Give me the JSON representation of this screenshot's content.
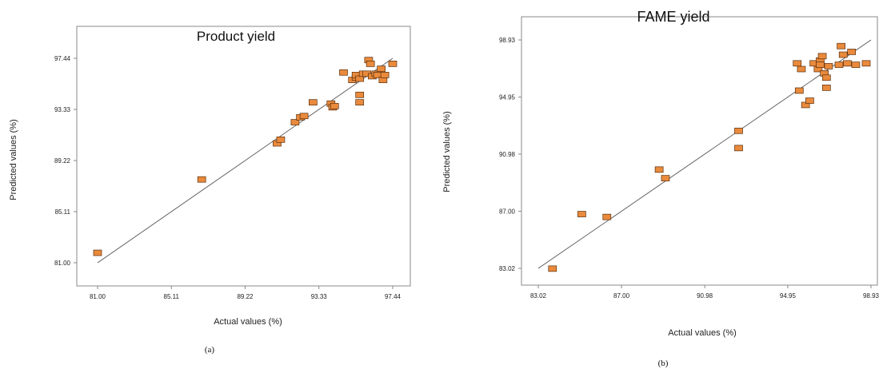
{
  "chart_data": [
    {
      "type": "scatter",
      "title": "Product yield",
      "xlabel": "Actual values (%)",
      "ylabel": "Predicted values (%)",
      "caption": "(a)",
      "xlim": [
        81.0,
        97.44
      ],
      "ylim": [
        81.0,
        97.44
      ],
      "xticks": [
        "81.00",
        "85.11",
        "89.22",
        "93.33",
        "97.44"
      ],
      "yticks": [
        "81.00",
        "85.11",
        "89.22",
        "93.33",
        "97.44"
      ],
      "grid": false,
      "fit_line": [
        [
          81.0,
          81.0
        ],
        [
          97.44,
          97.44
        ]
      ],
      "points": [
        {
          "x": 81.0,
          "y": 81.8
        },
        {
          "x": 86.8,
          "y": 87.7
        },
        {
          "x": 91.0,
          "y": 90.6
        },
        {
          "x": 91.2,
          "y": 90.9
        },
        {
          "x": 92.0,
          "y": 92.3
        },
        {
          "x": 92.3,
          "y": 92.7
        },
        {
          "x": 92.5,
          "y": 92.8
        },
        {
          "x": 93.0,
          "y": 93.9
        },
        {
          "x": 94.0,
          "y": 93.8
        },
        {
          "x": 94.1,
          "y": 93.5
        },
        {
          "x": 94.2,
          "y": 93.6
        },
        {
          "x": 94.7,
          "y": 96.3
        },
        {
          "x": 95.2,
          "y": 95.7
        },
        {
          "x": 95.4,
          "y": 95.9
        },
        {
          "x": 95.4,
          "y": 96.1
        },
        {
          "x": 95.6,
          "y": 95.8
        },
        {
          "x": 95.6,
          "y": 94.5
        },
        {
          "x": 95.6,
          "y": 93.9
        },
        {
          "x": 95.8,
          "y": 96.2
        },
        {
          "x": 96.0,
          "y": 96.2
        },
        {
          "x": 96.1,
          "y": 97.3
        },
        {
          "x": 96.2,
          "y": 97.0
        },
        {
          "x": 96.3,
          "y": 96.0
        },
        {
          "x": 96.5,
          "y": 96.2
        },
        {
          "x": 96.6,
          "y": 96.1
        },
        {
          "x": 96.8,
          "y": 96.6
        },
        {
          "x": 96.9,
          "y": 95.7
        },
        {
          "x": 97.0,
          "y": 96.1
        },
        {
          "x": 97.44,
          "y": 97.0
        }
      ]
    },
    {
      "type": "scatter",
      "title": "FAME yield",
      "xlabel": "Actual values (%)",
      "ylabel": "Predicted values (%)",
      "caption": "(b)",
      "xlim": [
        83.02,
        98.93
      ],
      "ylim": [
        83.02,
        98.93
      ],
      "xticks": [
        "83.02",
        "87.00",
        "90.98",
        "94.95",
        "98.93"
      ],
      "yticks": [
        "83.02",
        "87.00",
        "90.98",
        "94.95",
        "98.93"
      ],
      "grid": false,
      "fit_line": [
        [
          83.02,
          83.02
        ],
        [
          98.93,
          98.93
        ]
      ],
      "points": [
        {
          "x": 83.7,
          "y": 83.0
        },
        {
          "x": 85.1,
          "y": 86.8
        },
        {
          "x": 86.3,
          "y": 86.6
        },
        {
          "x": 88.8,
          "y": 89.9
        },
        {
          "x": 89.1,
          "y": 89.3
        },
        {
          "x": 92.6,
          "y": 92.6
        },
        {
          "x": 92.6,
          "y": 91.4
        },
        {
          "x": 95.4,
          "y": 97.3
        },
        {
          "x": 95.5,
          "y": 95.4
        },
        {
          "x": 95.6,
          "y": 96.9
        },
        {
          "x": 95.8,
          "y": 94.4
        },
        {
          "x": 96.0,
          "y": 94.7
        },
        {
          "x": 96.2,
          "y": 97.3
        },
        {
          "x": 96.4,
          "y": 96.9
        },
        {
          "x": 96.5,
          "y": 97.5
        },
        {
          "x": 96.5,
          "y": 97.2
        },
        {
          "x": 96.6,
          "y": 97.8
        },
        {
          "x": 96.7,
          "y": 96.6
        },
        {
          "x": 96.8,
          "y": 96.3
        },
        {
          "x": 96.8,
          "y": 95.6
        },
        {
          "x": 96.9,
          "y": 97.1
        },
        {
          "x": 97.4,
          "y": 97.2
        },
        {
          "x": 97.5,
          "y": 98.5
        },
        {
          "x": 97.6,
          "y": 97.9
        },
        {
          "x": 97.8,
          "y": 97.3
        },
        {
          "x": 98.0,
          "y": 98.1
        },
        {
          "x": 98.2,
          "y": 97.2
        },
        {
          "x": 98.7,
          "y": 97.3
        }
      ]
    }
  ],
  "style": {
    "marker_fill": "#e98a3c",
    "marker_stroke": "#5a2e0c",
    "line_color": "#555555",
    "axis_color": "#888888"
  }
}
